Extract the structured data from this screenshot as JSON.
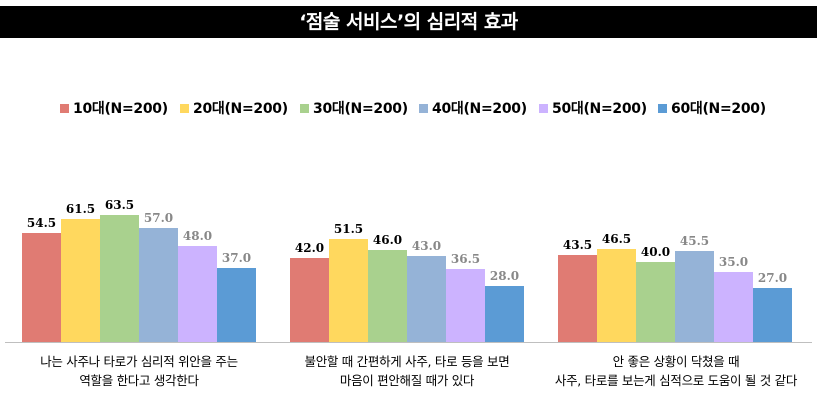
{
  "title": "‘점술 서비스’의 심리적 효과",
  "chart_data": {
    "type": "bar",
    "categories": [
      "나는 사주나 타로가 심리적 위안을 주는\n역할을 한다고 생각한다",
      "불안할 때 간편하게 사주, 타로 등을 보면\n마음이 편안해질 때가 있다",
      "안 좋은 상황이 닥쳤을 때\n사주, 타로를 보는게 심적으로 도움이 될 것 같다"
    ],
    "series": [
      {
        "name": "10대(N=200)",
        "color": "#e07b73",
        "values": [
          54.5,
          42.0,
          43.5
        ]
      },
      {
        "name": "20대(N=200)",
        "color": "#ffd85e",
        "values": [
          61.5,
          51.5,
          46.5
        ]
      },
      {
        "name": "30대(N=200)",
        "color": "#a9d18e",
        "values": [
          63.5,
          46.0,
          40.0
        ]
      },
      {
        "name": "40대(N=200)",
        "color": "#95b3d7",
        "values": [
          57.0,
          43.0,
          45.5
        ]
      },
      {
        "name": "50대(N=200)",
        "color": "#ccb3ff",
        "values": [
          48.0,
          36.5,
          35.0
        ]
      },
      {
        "name": "60대(N=200)",
        "color": "#5b9bd5",
        "values": [
          37.0,
          28.0,
          27.0
        ]
      }
    ],
    "data_labels": [
      [
        "54.5",
        "61.5",
        "63.5",
        "57.0",
        "48.0",
        "37.0"
      ],
      [
        "42.0",
        "51.5",
        "46.0",
        "43.0",
        "36.5",
        "28.0"
      ],
      [
        "43.5",
        "46.5",
        "40.0",
        "45.5",
        "35.0",
        "27.0"
      ]
    ],
    "label_colors": [
      "#000000",
      "#000000",
      "#000000",
      "#888888",
      "#888888",
      "#888888"
    ],
    "ylim": [
      0,
      100
    ],
    "legend_position": "top",
    "grid": false,
    "title": "‘점술 서비스’의 심리적 효과"
  }
}
